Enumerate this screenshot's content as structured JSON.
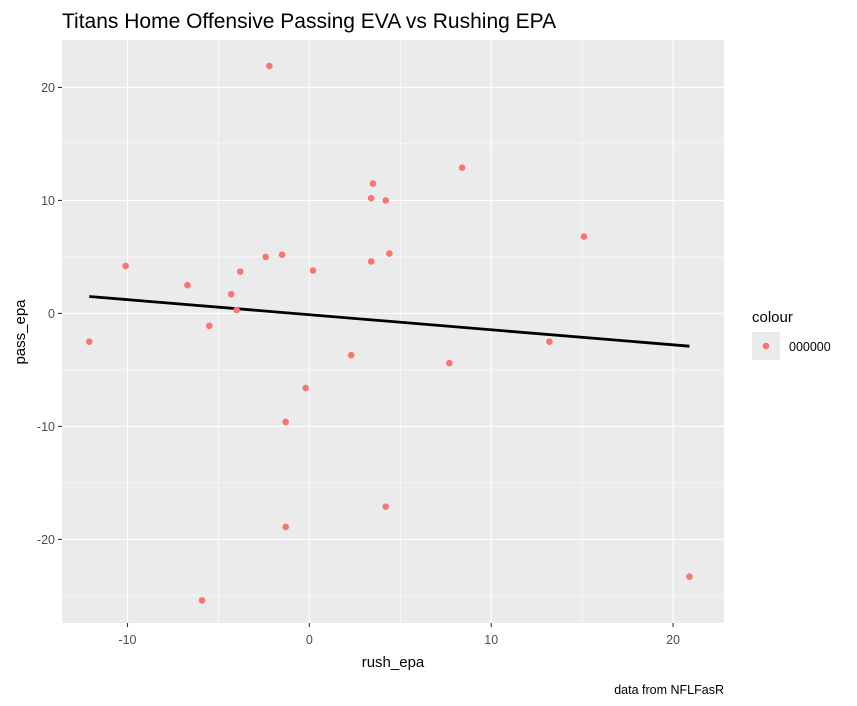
{
  "chart_data": {
    "type": "scatter",
    "title": "Titans Home Offensive Passing EVA vs Rushing EPA",
    "xlabel": "rush_epa",
    "ylabel": "pass_epa",
    "caption": "data from NFLFasR",
    "xlim": [
      -13.6,
      22.8
    ],
    "ylim": [
      -27.4,
      24.2
    ],
    "x_ticks": [
      -10,
      0,
      10,
      20
    ],
    "x_tick_labels": [
      "-10",
      "0",
      "10",
      "20"
    ],
    "y_ticks": [
      -20,
      -10,
      0,
      10,
      20
    ],
    "y_tick_labels": [
      "-20",
      "-10",
      "0",
      "10",
      "20"
    ],
    "grid": true,
    "legend": {
      "title": "colour",
      "position": "right",
      "entries": [
        {
          "label": "000000",
          "color": "#F8766D"
        }
      ]
    },
    "series": [
      {
        "name": "000000",
        "color": "#F8766D",
        "points": [
          {
            "x": -12.1,
            "y": -2.5
          },
          {
            "x": -10.1,
            "y": 4.2
          },
          {
            "x": -6.7,
            "y": 2.5
          },
          {
            "x": -5.9,
            "y": -25.4
          },
          {
            "x": -5.5,
            "y": -1.1
          },
          {
            "x": -4.3,
            "y": 1.7
          },
          {
            "x": -4.0,
            "y": 0.3
          },
          {
            "x": -3.8,
            "y": 3.7
          },
          {
            "x": -2.4,
            "y": 5.0
          },
          {
            "x": -2.2,
            "y": 21.9
          },
          {
            "x": -1.5,
            "y": 5.2
          },
          {
            "x": -1.3,
            "y": -9.6
          },
          {
            "x": -1.3,
            "y": -18.9
          },
          {
            "x": -0.2,
            "y": -6.6
          },
          {
            "x": 0.2,
            "y": 3.8
          },
          {
            "x": 2.3,
            "y": -3.7
          },
          {
            "x": 3.4,
            "y": 10.2
          },
          {
            "x": 3.4,
            "y": 4.6
          },
          {
            "x": 3.5,
            "y": 11.5
          },
          {
            "x": 4.2,
            "y": 10.0
          },
          {
            "x": 4.2,
            "y": -17.1
          },
          {
            "x": 4.4,
            "y": 5.3
          },
          {
            "x": 7.7,
            "y": -4.4
          },
          {
            "x": 8.4,
            "y": 12.9
          },
          {
            "x": 13.2,
            "y": -2.5
          },
          {
            "x": 15.1,
            "y": 6.8
          },
          {
            "x": 20.9,
            "y": -23.3
          }
        ]
      }
    ],
    "trend_line": {
      "color": "#000000",
      "x": [
        -12.1,
        20.9
      ],
      "y": [
        1.5,
        -2.9
      ]
    }
  }
}
